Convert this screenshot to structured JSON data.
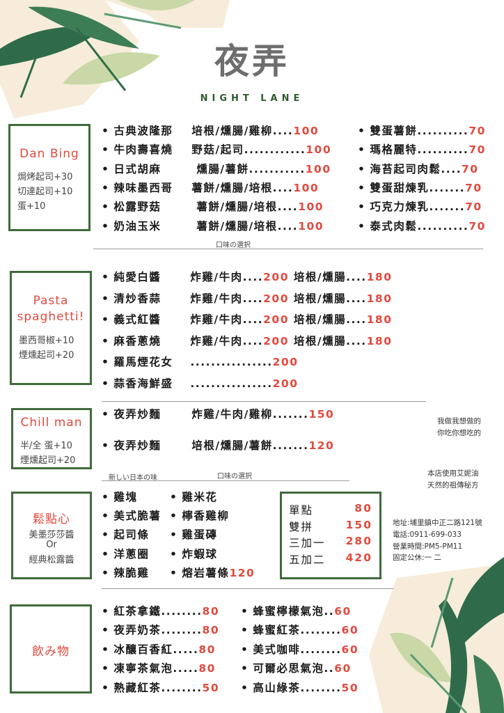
{
  "header": {
    "title": "夜弄",
    "subtitle": "NIGHT LANE"
  },
  "dan_bing": {
    "title": "Dan Bing",
    "addons": [
      "焗烤起司+30",
      "切達起司+10",
      "蛋+10"
    ],
    "left_items": [
      {
        "name": "古典波隆那",
        "opts": "培根/燻腸/雞柳....",
        "price": "100"
      },
      {
        "name": "牛肉壽喜燒",
        "opts": "野菇/起司............",
        "price": "100"
      },
      {
        "name": "日式胡麻",
        "opts": "  燻腸/薯餅...........",
        "price": "100"
      },
      {
        "name": "辣味墨西哥",
        "opts": "薯餅/燻腸/培根....",
        "price": "100"
      },
      {
        "name": "松露野菇",
        "opts": "  薯餅/燻腸/培根....",
        "price": "100"
      },
      {
        "name": "奶油玉米",
        "opts": "  薯餅/燻腸/培根....",
        "price": "100"
      }
    ],
    "right_items": [
      {
        "name": "雙蛋薯餅..........",
        "price": "70"
      },
      {
        "name": "瑪格麗特..........",
        "price": "70"
      },
      {
        "name": "海苔起司肉鬆....",
        "price": "70"
      },
      {
        "name": "雙蛋甜煉乳.......",
        "price": "70"
      },
      {
        "name": "巧克力煉乳.......",
        "price": "70"
      },
      {
        "name": "泰式肉鬆..........",
        "price": "70"
      }
    ],
    "note": "口味の選択"
  },
  "pasta": {
    "title_1": "Pasta",
    "title_2": "spaghetti!",
    "addons": [
      "墨西哥椒+10",
      "煙燻起司+20"
    ],
    "items": [
      {
        "name": "純愛白醬",
        "a": "炸雞/牛肉....",
        "ap": "200",
        "b": "培根/燻腸....",
        "bp": "180"
      },
      {
        "name": "清炒香蒜",
        "a": "炸雞/牛肉....",
        "ap": "200",
        "b": "培根/燻腸....",
        "bp": "180"
      },
      {
        "name": "義式紅醬",
        "a": "炸雞/牛肉....",
        "ap": "200",
        "b": "培根/燻腸....",
        "bp": "180"
      },
      {
        "name": "麻香蔥燒",
        "a": "炸雞/牛肉....",
        "ap": "200",
        "b": "培根/燻腸....",
        "bp": "180"
      }
    ],
    "extra": [
      {
        "name": "羅馬煙花女",
        "dots": "................",
        "price": "200"
      },
      {
        "name": "蒜香海鮮盛",
        "dots": "................",
        "price": "200"
      }
    ]
  },
  "chill": {
    "title": "Chill man",
    "addons": [
      "半/全  蛋+10",
      "煙燻起司+20"
    ],
    "items": [
      {
        "name": "夜弄炒麵",
        "opts": "炸雞/牛肉/雞柳.......",
        "price": "150"
      },
      {
        "name": "夜弄炒麵",
        "opts": "培根/燻腸/薯餅.......",
        "price": "120"
      }
    ],
    "note_left": "新しい日本の味",
    "note_right": "口味の選択"
  },
  "snack": {
    "title": "鬆點心",
    "sub": [
      "美墨莎莎醬",
      "Or",
      "經典松露醬"
    ],
    "col1": [
      "雞塊",
      "美式脆薯",
      "起司條",
      "洋蔥圈",
      "辣脆雞"
    ],
    "col2": [
      "雞米花",
      "檸香雞柳",
      "雞蛋磚",
      "炸蝦球",
      "熔岩薯條"
    ],
    "col2_last_price": "120"
  },
  "combo": [
    {
      "label": "單點",
      "price": "80"
    },
    {
      "label": "雙拼",
      "price": "150"
    },
    {
      "label": "三加一",
      "price": "280"
    },
    {
      "label": "五加二",
      "price": "420"
    }
  ],
  "drinks": {
    "title": "飲み物",
    "left": [
      {
        "name": "紅茶拿鐵........",
        "price": "80"
      },
      {
        "name": "夜弄奶茶........",
        "price": "80"
      },
      {
        "name": "冰釀百香紅.....",
        "price": "80"
      },
      {
        "name": "凍寧茶氣泡.....",
        "price": "80"
      },
      {
        "name": "熟藏紅茶........",
        "price": "50"
      }
    ],
    "right": [
      {
        "name": "蜂蜜檸檬氣泡..",
        "price": "60"
      },
      {
        "name": "蜂蜜紅茶........",
        "price": "60"
      },
      {
        "name": "美式咖啡........",
        "price": "60"
      },
      {
        "name": "可爾必思氣泡..",
        "price": "60"
      },
      {
        "name": "高山綠茶........",
        "price": "50"
      }
    ]
  },
  "side_info": {
    "slogan_1": "我做我想做的",
    "slogan_2": "你吃你想吃的",
    "oil_1": "本店使用艾妮油",
    "oil_2": "天然的祖傳秘方",
    "address": "地址:埔里鎮中正二路121號",
    "phone": "電話:0911-699-033",
    "hours": "營業時間:PM5-PM11",
    "closed": "固定公休:一 二"
  },
  "colors": {
    "accent_red": "#e04a3f",
    "frame_green": "#3f6b3a",
    "leaf_dark": "#2f6b4a",
    "leaf_light": "#c9d8a6",
    "cream": "#f6ecd9"
  }
}
